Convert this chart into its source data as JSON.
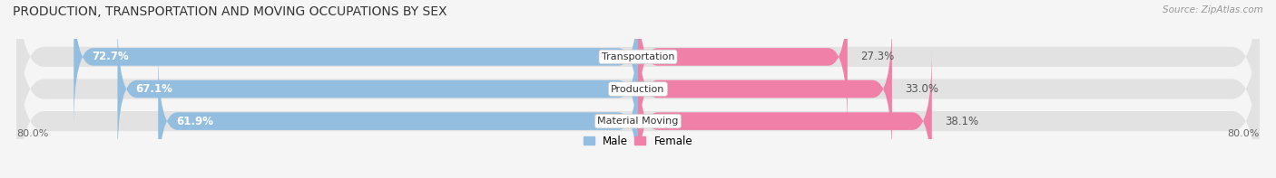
{
  "title": "PRODUCTION, TRANSPORTATION AND MOVING OCCUPATIONS BY SEX",
  "source": "Source: ZipAtlas.com",
  "categories": [
    "Transportation",
    "Production",
    "Material Moving"
  ],
  "male_pct": [
    72.7,
    67.1,
    61.9
  ],
  "female_pct": [
    27.3,
    33.0,
    38.1
  ],
  "male_color": "#94bee0",
  "female_color": "#f080a8",
  "male_label": "Male",
  "female_label": "Female",
  "axis_label_left": "80.0%",
  "axis_label_right": "80.0%",
  "xlim_left": -80.0,
  "xlim_right": 80.0,
  "bar_height": 0.62,
  "background_color": "#f5f5f5",
  "bar_bg_color": "#e2e2e2",
  "title_fontsize": 10,
  "label_fontsize": 8.5,
  "tick_fontsize": 8,
  "source_fontsize": 7.5,
  "cat_fontsize": 8
}
